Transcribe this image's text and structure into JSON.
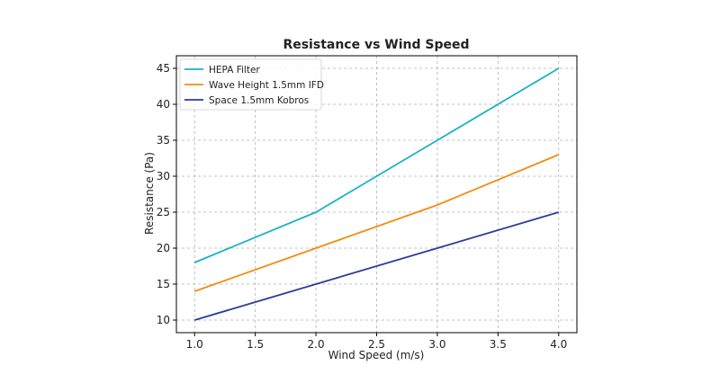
{
  "chart_data": {
    "type": "line",
    "title": "Resistance vs Wind Speed",
    "xlabel": "Wind Speed (m/s)",
    "ylabel": "Resistance (Pa)",
    "x": [
      1.0,
      2.0,
      3.0,
      4.0
    ],
    "xlim": [
      0.85,
      4.15
    ],
    "ylim": [
      8.25,
      46.75
    ],
    "xticks": [
      "1.0",
      "1.5",
      "2.0",
      "2.5",
      "3.0",
      "3.5",
      "4.0"
    ],
    "yticks": [
      "10",
      "15",
      "20",
      "25",
      "30",
      "35",
      "40",
      "45"
    ],
    "grid": true,
    "legend_position": "upper-left",
    "series": [
      {
        "name": "HEPA Filter",
        "color": "#17b3c6",
        "values": [
          18,
          25,
          35,
          45
        ]
      },
      {
        "name": "Wave Height 1.5mm IFD",
        "color": "#f28c0f",
        "values": [
          14,
          20,
          26,
          33
        ]
      },
      {
        "name": "Space 1.5mm Kobros",
        "color": "#2a3d9c",
        "values": [
          10,
          15,
          20,
          25
        ]
      }
    ]
  }
}
